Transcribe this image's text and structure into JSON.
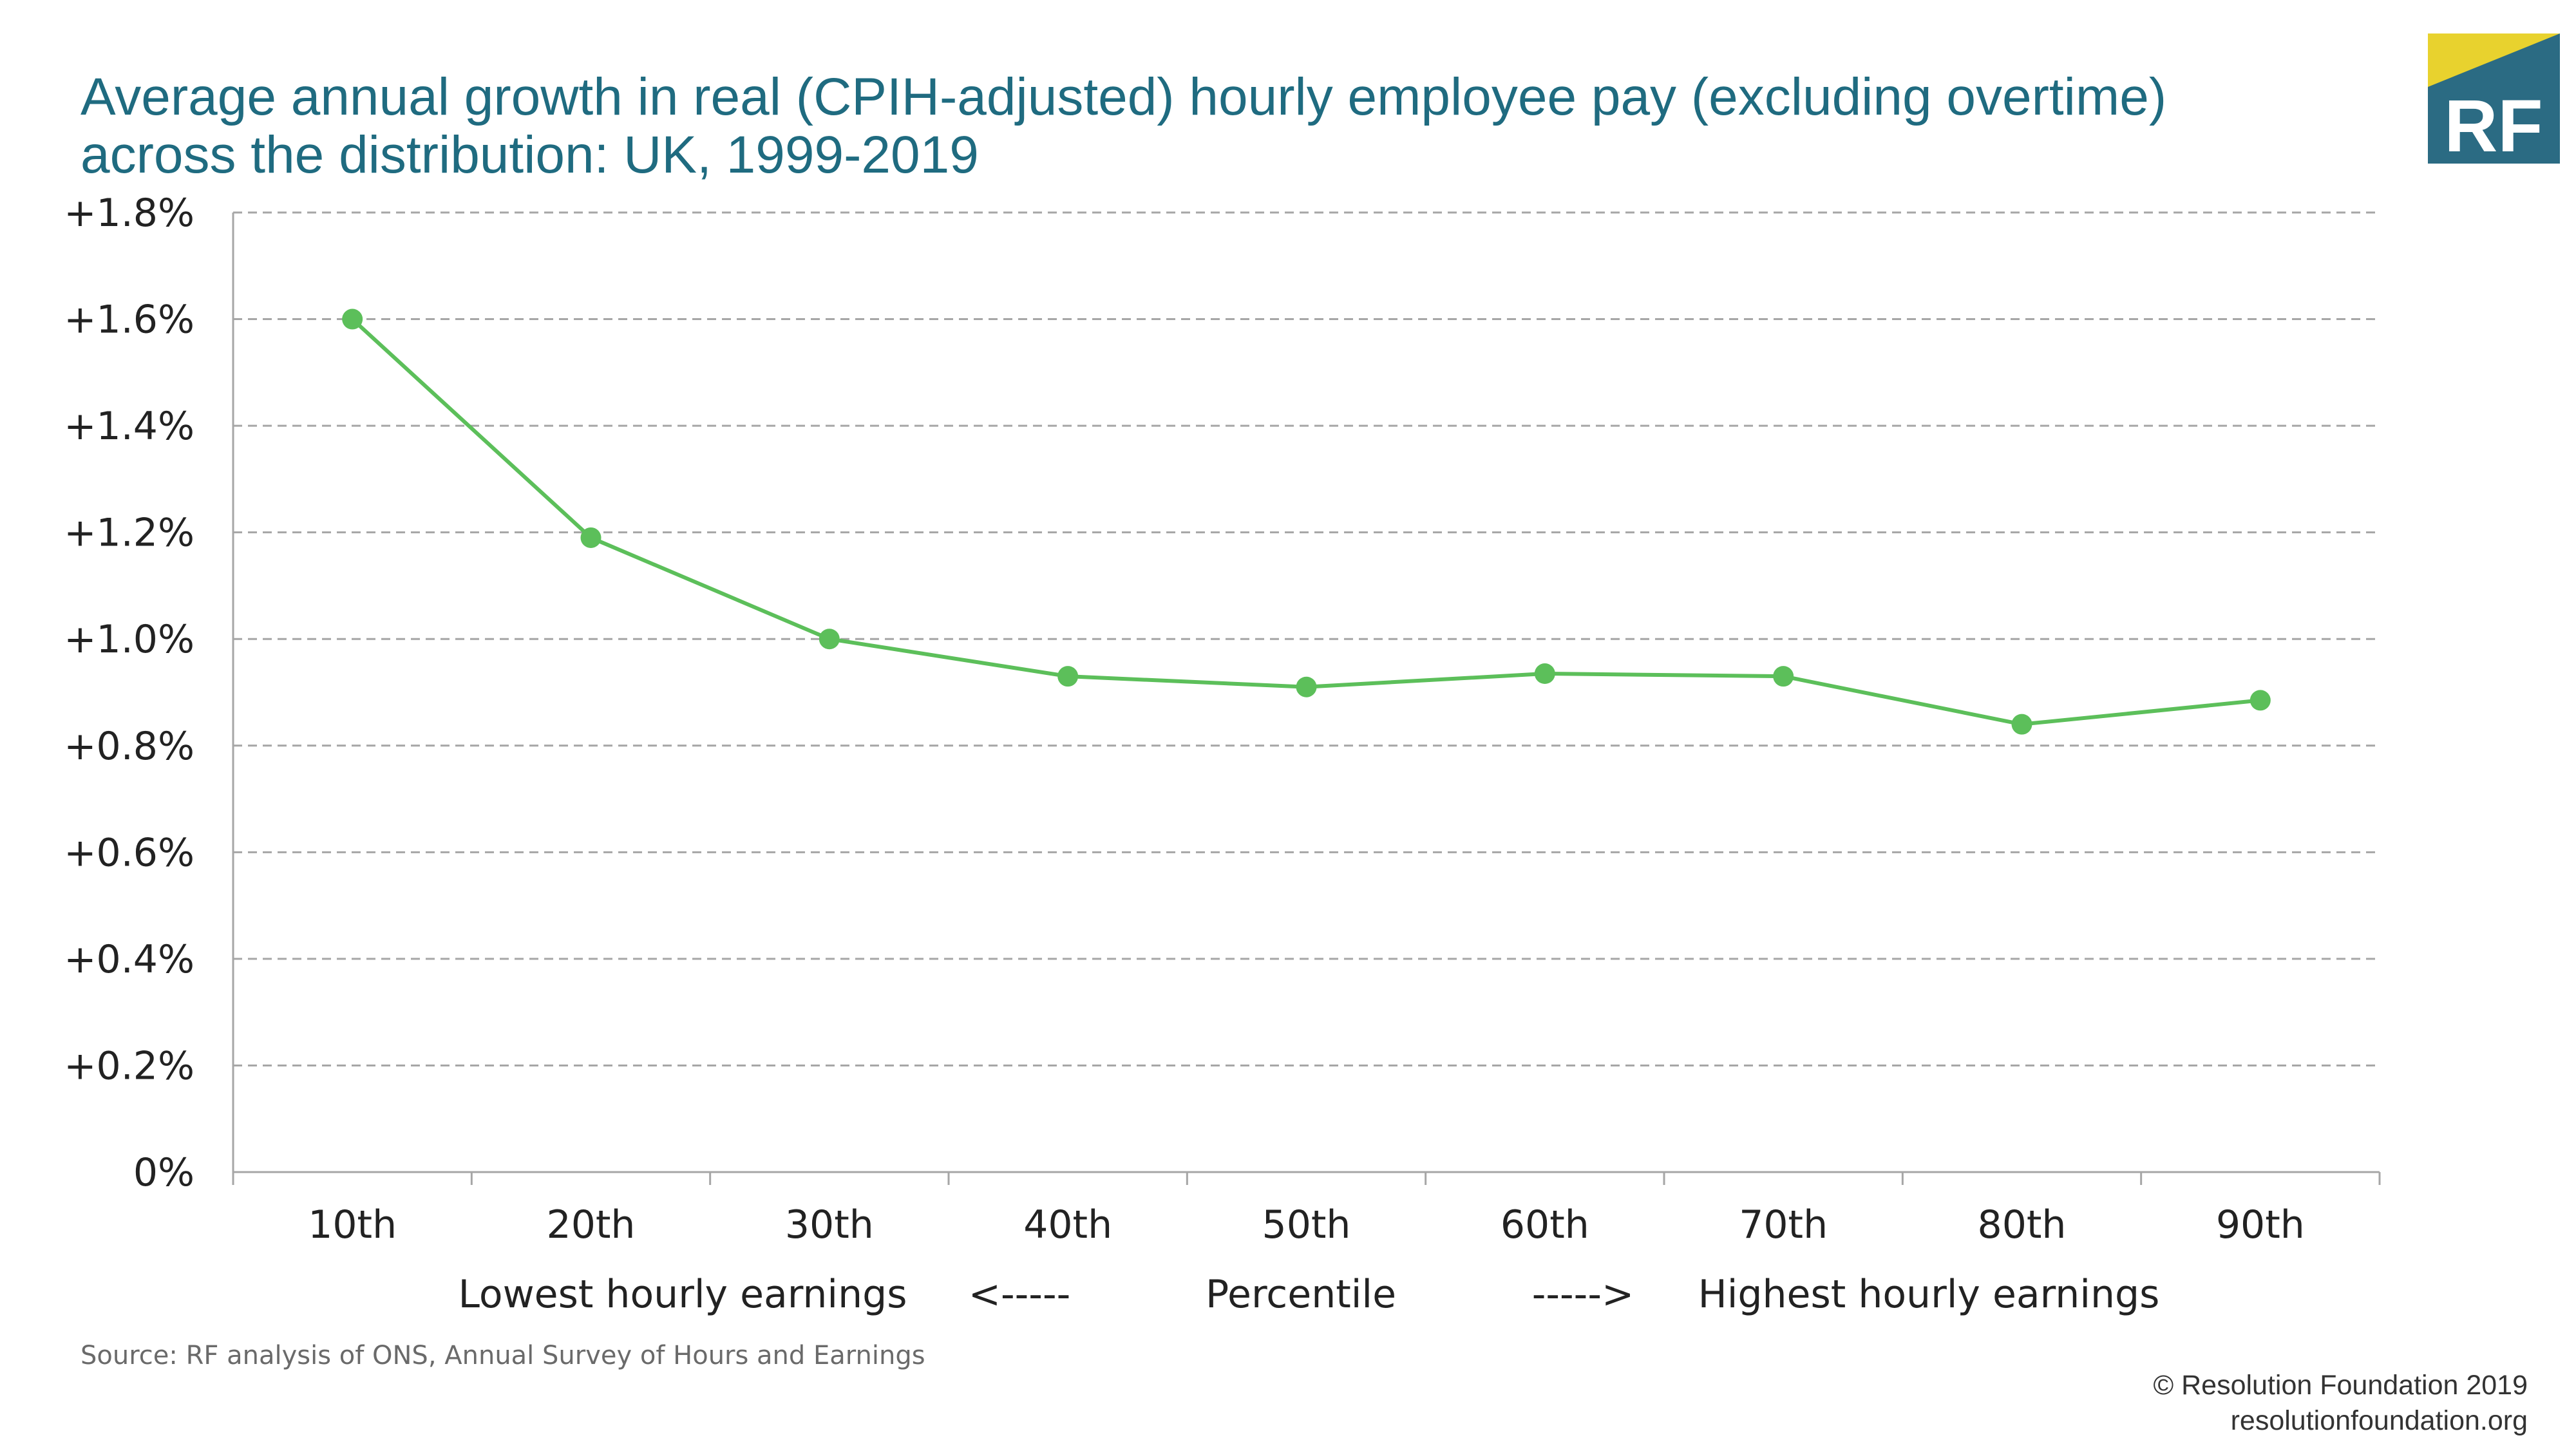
{
  "chart_data": {
    "type": "line",
    "title": "Average annual growth in real (CPIH-adjusted) hourly employee pay (excluding overtime) across the distribution: UK, 1999-2019",
    "title_lines": [
      "Average annual growth in real (CPIH-adjusted) hourly employee pay (excluding overtime)",
      "across the distribution: UK, 1999-2019"
    ],
    "categories": [
      "10th",
      "20th",
      "30th",
      "40th",
      "50th",
      "60th",
      "70th",
      "80th",
      "90th"
    ],
    "series": [
      {
        "values": [
          1.6,
          1.19,
          1.0,
          0.93,
          0.91,
          0.935,
          0.93,
          0.84,
          0.885
        ]
      }
    ],
    "ylim": [
      0,
      1.8
    ],
    "y_ticks": [
      0,
      0.2,
      0.4,
      0.6,
      0.8,
      1.0,
      1.2,
      1.4,
      1.6,
      1.8
    ],
    "y_tick_labels": [
      "0%",
      "+0.2%",
      "+0.4%",
      "+0.6%",
      "+0.8%",
      "+1.0%",
      "+1.2%",
      "+1.4%",
      "+1.6%",
      "+1.8%"
    ],
    "x_caption": {
      "left": "Lowest hourly earnings",
      "left_arrow": "<-----",
      "center": "Percentile",
      "right_arrow": "----->",
      "right": "Highest hourly earnings"
    },
    "grid": true,
    "line_color": "#5cbf5a",
    "grid_color": "#a6a6a6"
  },
  "source": "Source: RF analysis of ONS, Annual Survey of Hours and Earnings",
  "footer": {
    "copyright": "© Resolution Foundation 2019",
    "website": "resolutionfoundation.org"
  },
  "logo": {
    "text": "RF",
    "colors": {
      "primary": "#2b6b83",
      "accent": "#e8d22e"
    }
  }
}
